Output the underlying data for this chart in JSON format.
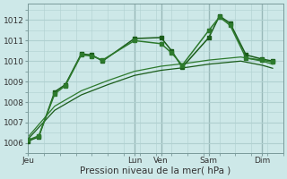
{
  "bg_color": "#cde8e8",
  "plot_bg_color": "#cde8e8",
  "grid_color": "#b0d0d0",
  "line_colors": [
    "#1a5c1a",
    "#2d7a2d",
    "#2d7a2d",
    "#1a5c1a"
  ],
  "ylabel": "Pression niveau de la mer( hPa )",
  "ylim": [
    1005.5,
    1012.8
  ],
  "yticks": [
    1006,
    1007,
    1008,
    1009,
    1010,
    1011,
    1012
  ],
  "day_labels": [
    "Jeu",
    "Lun",
    "Ven",
    "Sam",
    "Dim"
  ],
  "day_positions": [
    0,
    40,
    50,
    68,
    88
  ],
  "xlim": [
    0,
    96
  ],
  "vlines_x": [
    40,
    50,
    68,
    88
  ],
  "vlines_color": "#7a9a9a",
  "series": [
    {
      "x": [
        0,
        4,
        10,
        14,
        20,
        24,
        28,
        40,
        50,
        54,
        58,
        68,
        72,
        76,
        82,
        88,
        92
      ],
      "y": [
        1006.1,
        1006.3,
        1008.5,
        1008.85,
        1010.35,
        1010.3,
        1010.0,
        1011.1,
        1011.15,
        1010.5,
        1009.7,
        1011.15,
        1012.2,
        1011.85,
        1010.3,
        1010.1,
        1010.0
      ],
      "marker": "s",
      "markersize": 2.5,
      "linewidth": 1.1,
      "color": "#1a5c1a"
    },
    {
      "x": [
        0,
        4,
        10,
        14,
        20,
        24,
        28,
        40,
        50,
        54,
        58,
        68,
        72,
        76,
        82,
        88,
        92
      ],
      "y": [
        1006.15,
        1006.35,
        1008.4,
        1008.8,
        1010.3,
        1010.25,
        1010.05,
        1011.0,
        1010.85,
        1010.4,
        1009.8,
        1011.5,
        1012.15,
        1011.75,
        1010.15,
        1010.05,
        1009.95
      ],
      "marker": "s",
      "markersize": 2.5,
      "linewidth": 1.1,
      "color": "#2d7a2d"
    },
    {
      "x": [
        0,
        10,
        20,
        30,
        40,
        50,
        60,
        68,
        80,
        88,
        92
      ],
      "y": [
        1006.3,
        1007.8,
        1008.55,
        1009.05,
        1009.5,
        1009.75,
        1009.9,
        1010.05,
        1010.2,
        1010.0,
        1009.85
      ],
      "marker": null,
      "markersize": 0,
      "linewidth": 0.9,
      "color": "#2d7a2d"
    },
    {
      "x": [
        0,
        10,
        20,
        30,
        40,
        50,
        60,
        68,
        80,
        88,
        92
      ],
      "y": [
        1006.2,
        1007.6,
        1008.35,
        1008.85,
        1009.3,
        1009.55,
        1009.7,
        1009.85,
        1010.0,
        1009.8,
        1009.65
      ],
      "marker": null,
      "markersize": 0,
      "linewidth": 0.9,
      "color": "#1a5c1a"
    }
  ]
}
